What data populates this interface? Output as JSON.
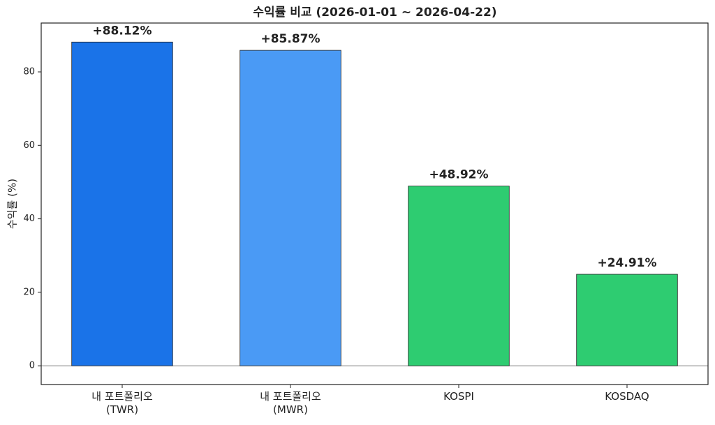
{
  "chart_data": {
    "type": "bar",
    "title": "수익률 비교 (2026-01-01 ~ 2026-04-22)",
    "y_label": "수익률 (%)",
    "categories": [
      "내 포트폴리오\n(TWR)",
      "내 포트폴리오\n(MWR)",
      "KOSPI",
      "KOSDAQ"
    ],
    "values": [
      88.12,
      85.87,
      48.92,
      24.91
    ],
    "value_labels": [
      "+88.12%",
      "+85.87%",
      "+48.92%",
      "+24.91%"
    ],
    "colors": [
      "#1a73e8",
      "#4a9af5",
      "#2ecc71",
      "#2ecc71"
    ],
    "ylim": [
      -5.1,
      93.3
    ],
    "yticks": [
      0,
      20,
      40,
      60,
      80
    ],
    "grid": false
  }
}
